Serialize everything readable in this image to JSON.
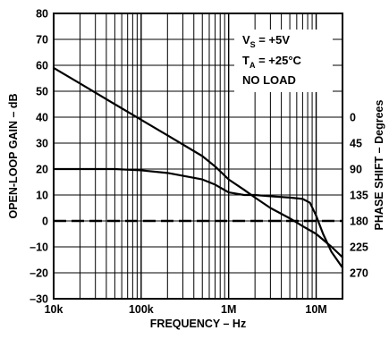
{
  "chart_data": {
    "type": "line",
    "xlabel": "FREQUENCY – Hz",
    "ylabel_left": "OPEN-LOOP GAIN – dB",
    "ylabel_right": "PHASE SHIFT – Degrees",
    "x_scale": "log",
    "xlim": [
      10000,
      20000000
    ],
    "ylim": [
      -30,
      80
    ],
    "x_tick_values": [
      10000,
      100000,
      1000000,
      10000000
    ],
    "x_tick_labels": [
      "10k",
      "100k",
      "1M",
      "10M"
    ],
    "y_ticks": [
      80,
      70,
      60,
      50,
      40,
      30,
      20,
      10,
      0,
      -10,
      -20,
      -30
    ],
    "y_tick_labels": [
      "80",
      "70",
      "60",
      "50",
      "40",
      "30",
      "20",
      "10",
      "0",
      "–10",
      "–20",
      "–30"
    ],
    "right_ticks": [
      {
        "gain": 40,
        "label": "0"
      },
      {
        "gain": 30,
        "label": "45"
      },
      {
        "gain": 20,
        "label": "90"
      },
      {
        "gain": 10,
        "label": "135"
      },
      {
        "gain": 0,
        "label": "180"
      },
      {
        "gain": -10,
        "label": "225"
      },
      {
        "gain": -20,
        "label": "270"
      }
    ],
    "grid": true,
    "annotation": {
      "line1_main": "V",
      "line1_sub": "S",
      "line1_rest": " = +5V",
      "line2_main": "T",
      "line2_sub": "A",
      "line2_rest": " = +25°C",
      "line3": "NO LOAD"
    },
    "series": [
      {
        "x": [
          10000,
          20000,
          50000,
          100000,
          200000,
          500000,
          700000,
          1000000,
          1500000,
          2000000,
          3000000,
          5000000,
          7000000,
          10000000,
          15000000,
          20000000
        ],
        "values": [
          59,
          53,
          45,
          39,
          33,
          25,
          21,
          16,
          12,
          9,
          5,
          1,
          -2,
          -5,
          -10,
          -14
        ]
      },
      {
        "x": [
          10000,
          50000,
          100000,
          200000,
          500000,
          700000,
          1000000,
          1500000,
          2000000,
          3000000,
          5000000,
          7000000,
          8500000,
          10000000,
          12000000,
          15000000,
          20000000
        ],
        "values": [
          20,
          20,
          19.5,
          18.5,
          16,
          14,
          11,
          10,
          10,
          9.5,
          9,
          8.5,
          7,
          2,
          -5,
          -12,
          -18
        ]
      },
      {
        "x": [
          10000,
          20000000
        ],
        "values": [
          0,
          0
        ],
        "dashed": true
      }
    ]
  }
}
